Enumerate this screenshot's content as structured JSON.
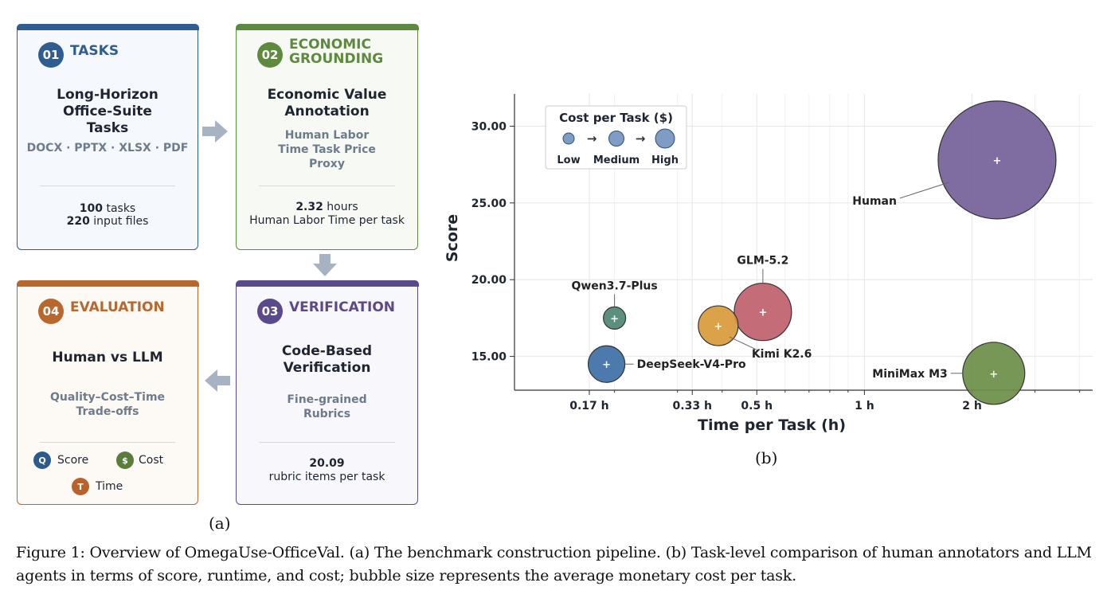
{
  "pipeline": {
    "cards": [
      {
        "num": "01",
        "title": "TASKS",
        "heading": "Long-Horizon Office-Suite Tasks",
        "sub": "DOCX · PPTX · XLSX · PDF",
        "stat_bold_1": "100",
        "stat_rest_1": " tasks",
        "stat_bold_2": "220",
        "stat_rest_2": " input files"
      },
      {
        "num": "02",
        "title": "ECONOMIC GROUNDING",
        "heading": "Economic Value Annotation",
        "sub": "Human Labor Time Task Price Proxy",
        "stat_bold_1": "2.32",
        "stat_rest_1": " hours",
        "stat_line_2": "Human Labor Time per task"
      },
      {
        "num": "03",
        "title": "VERIFICATION",
        "heading": "Code-Based Verification",
        "sub": "Fine-grained Rubrics",
        "stat_bold_1": "20.09",
        "stat_line_2": "rubric items per task"
      },
      {
        "num": "04",
        "title": "EVALUATION",
        "heading": "Human vs LLM",
        "sub": "Quality–Cost–Time Trade-offs"
      }
    ],
    "legend": [
      {
        "icon": "Q",
        "label": "Score",
        "color": "#2d5a8c"
      },
      {
        "icon": "$",
        "label": "Cost",
        "color": "#5a7d3e"
      },
      {
        "icon": "T",
        "label": "Time",
        "color": "#b8632e"
      }
    ],
    "colors": {
      "tasks": "#2f5d90",
      "economic": "#5e8a3f",
      "verification": "#5b4a8b",
      "evaluation": "#b8672e",
      "arrow": "#a7b2c2"
    },
    "label": "(a)"
  },
  "chart_data": {
    "type": "scatter",
    "xlabel": "Time per Task (h)",
    "ylabel": "Score",
    "x_scale": "log",
    "x_ticks": [
      {
        "value": 0.17,
        "label": "0.17 h"
      },
      {
        "value": 0.33,
        "label": "0.33 h"
      },
      {
        "value": 0.5,
        "label": "0.5 h"
      },
      {
        "value": 1,
        "label": "1 h"
      },
      {
        "value": 2,
        "label": "2 h"
      }
    ],
    "y_ticks": [
      {
        "value": 15,
        "label": "15.00"
      },
      {
        "value": 20,
        "label": "20.00"
      },
      {
        "value": 25,
        "label": "25.00"
      },
      {
        "value": 30,
        "label": "30.00"
      }
    ],
    "ylim": [
      12.8,
      32.1
    ],
    "xlim": [
      0.105,
      4.35
    ],
    "grid": true,
    "legend": {
      "title": "Cost per Task ($)",
      "entries": [
        "Low",
        "Medium",
        "High"
      ],
      "arrow": "→",
      "placement": "top-left"
    },
    "points": [
      {
        "name": "Human",
        "x": 2.35,
        "y": 27.8,
        "cost": "high",
        "color": "#74619a"
      },
      {
        "name": "GLM-5.2",
        "x": 0.52,
        "y": 17.9,
        "cost": "medium",
        "color": "#bf5f6c"
      },
      {
        "name": "Kimi K2.6",
        "x": 0.39,
        "y": 17.0,
        "cost": "medium",
        "color": "#d89a39"
      },
      {
        "name": "Qwen3.7-Plus",
        "x": 0.2,
        "y": 17.5,
        "cost": "low",
        "color": "#4e8573"
      },
      {
        "name": "DeepSeek-V4-Pro",
        "x": 0.19,
        "y": 14.5,
        "cost": "medium",
        "color": "#3e6fa6"
      },
      {
        "name": "MiniMax M3",
        "x": 2.3,
        "y": 13.9,
        "cost": "high",
        "color": "#6b8e48"
      }
    ],
    "panel_label": "(b)"
  },
  "caption": "Figure 1: Overview of OmegaUse-OfficeVal. (a) The benchmark construction pipeline. (b) Task-level comparison of human annotators and LLM agents in terms of score, runtime, and cost; bubble size represents the average monetary cost per task."
}
